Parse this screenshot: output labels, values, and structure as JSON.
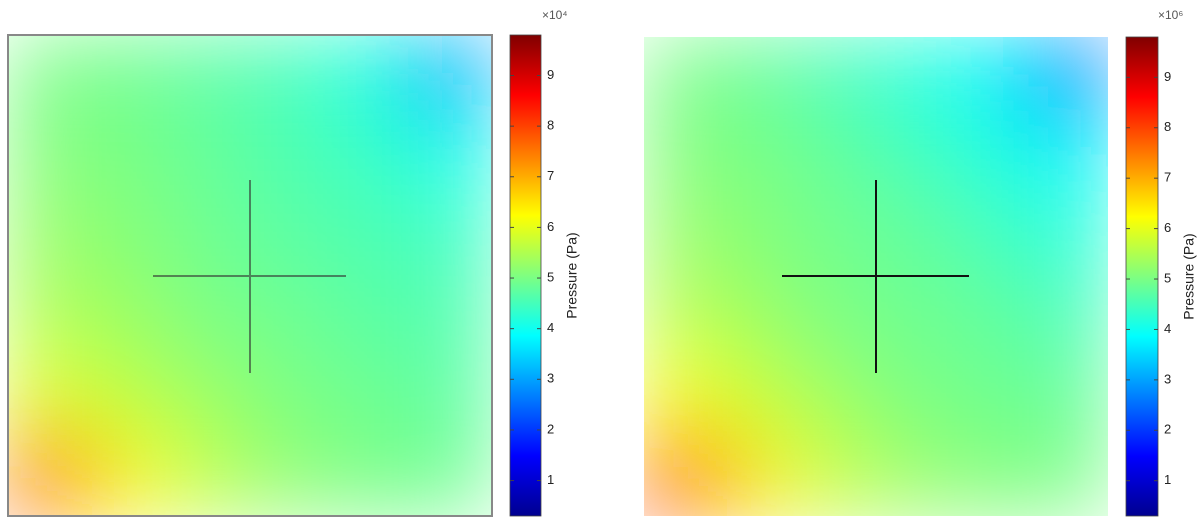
{
  "chart_data": [
    {
      "type": "heatmap",
      "colormap": "jet",
      "multiplier": "×10⁴",
      "colorbar_label": "Pressure (Pa)",
      "clim": [
        0.3,
        9.8
      ],
      "cticks": [
        1,
        2,
        3,
        4,
        5,
        6,
        7,
        8,
        9
      ],
      "z": [
        [
          5.0,
          4.9,
          4.7,
          4.5,
          4.1,
          3.0
        ],
        [
          5.1,
          5.0,
          4.8,
          4.6,
          4.4,
          4.0
        ],
        [
          5.3,
          5.1,
          4.9,
          4.7,
          4.6,
          4.4
        ],
        [
          5.5,
          5.3,
          5.0,
          4.9,
          4.7,
          4.6
        ],
        [
          6.0,
          5.6,
          5.3,
          5.0,
          4.9,
          4.7
        ],
        [
          7.8,
          6.3,
          5.6,
          5.2,
          5.0,
          4.9
        ]
      ]
    },
    {
      "type": "heatmap",
      "colormap": "jet",
      "multiplier": "×10⁶",
      "colorbar_label": "Pressure (Pa)",
      "clim": [
        0.3,
        9.8
      ],
      "cticks": [
        1,
        2,
        3,
        4,
        5,
        6,
        7,
        8,
        9
      ],
      "z": [
        [
          5.0,
          4.8,
          4.5,
          4.2,
          3.8,
          2.6
        ],
        [
          5.1,
          5.0,
          4.8,
          4.5,
          4.2,
          3.8
        ],
        [
          5.3,
          5.1,
          4.9,
          4.8,
          4.5,
          4.2
        ],
        [
          5.6,
          5.3,
          5.0,
          4.9,
          4.8,
          4.5
        ],
        [
          6.2,
          5.7,
          5.3,
          5.0,
          4.9,
          4.8
        ],
        [
          8.5,
          6.4,
          5.7,
          5.3,
          5.1,
          5.0
        ]
      ]
    }
  ]
}
